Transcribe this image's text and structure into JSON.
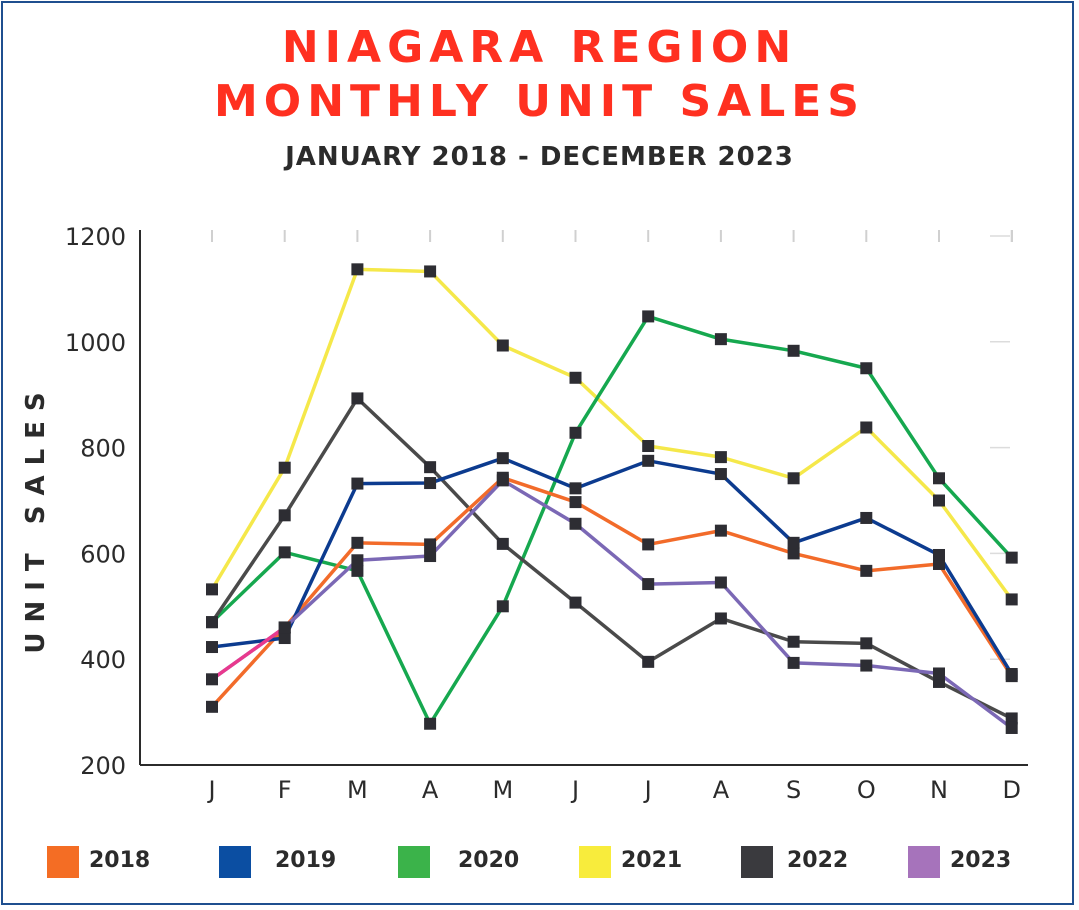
{
  "header": {
    "title_line1": "NIAGARA REGION",
    "title_line2": "MONTHLY UNIT SALES",
    "subtitle": "JANUARY 2018 - DECEMBER 2023"
  },
  "chart_data": {
    "type": "line",
    "title": "NIAGARA REGION MONTHLY UNIT SALES",
    "subtitle": "JANUARY 2018 - DECEMBER 2023",
    "ylabel": "UNIT SALES",
    "xlabel": "",
    "categories": [
      "J",
      "F",
      "M",
      "A",
      "M",
      "J",
      "J",
      "A",
      "S",
      "O",
      "N",
      "D"
    ],
    "ylim": [
      200,
      1200
    ],
    "yticks": [
      1200,
      1000,
      800,
      600,
      400,
      200
    ],
    "legend_position": "bottom",
    "series": [
      {
        "name": "2018",
        "color": "#f26b2a",
        "values": [
          310,
          460,
          620,
          617,
          743,
          697,
          617,
          643,
          600,
          567,
          580,
          368
        ]
      },
      {
        "name": "2019",
        "color": "#0c3b8f",
        "values": [
          423,
          440,
          732,
          733,
          780,
          723,
          775,
          750,
          620,
          667,
          597,
          372
        ]
      },
      {
        "name": "2020",
        "color": "#16a84f",
        "values": [
          470,
          602,
          567,
          278,
          500,
          828,
          1048,
          1005,
          983,
          950,
          742,
          592
        ]
      },
      {
        "name": "2021",
        "color": "#f5e84a",
        "values": [
          532,
          762,
          1137,
          1133,
          993,
          932,
          803,
          782,
          742,
          838,
          700,
          513
        ]
      },
      {
        "name": "2022",
        "color": "#4a4a4a",
        "values": [
          470,
          672,
          893,
          763,
          618,
          507,
          395,
          477,
          433,
          430,
          357,
          288
        ]
      },
      {
        "name": "2023",
        "color": "#7b68b5",
        "values": [
          362,
          460,
          587,
          595,
          738,
          656,
          542,
          545,
          393,
          388,
          373,
          270
        ]
      }
    ],
    "jan_2023_segment_color": "#e8398e",
    "marker_color": "#2d2d33"
  },
  "legend": [
    {
      "label": "2018",
      "color": "#f46d24"
    },
    {
      "label": "2019",
      "color": "#0b4ea2"
    },
    {
      "label": "2020",
      "color": "#3bb34a"
    },
    {
      "label": "2021",
      "color": "#f8ec3c"
    },
    {
      "label": "2022",
      "color": "#3a3a3e"
    },
    {
      "label": "2023",
      "color": "#a673bb"
    }
  ]
}
